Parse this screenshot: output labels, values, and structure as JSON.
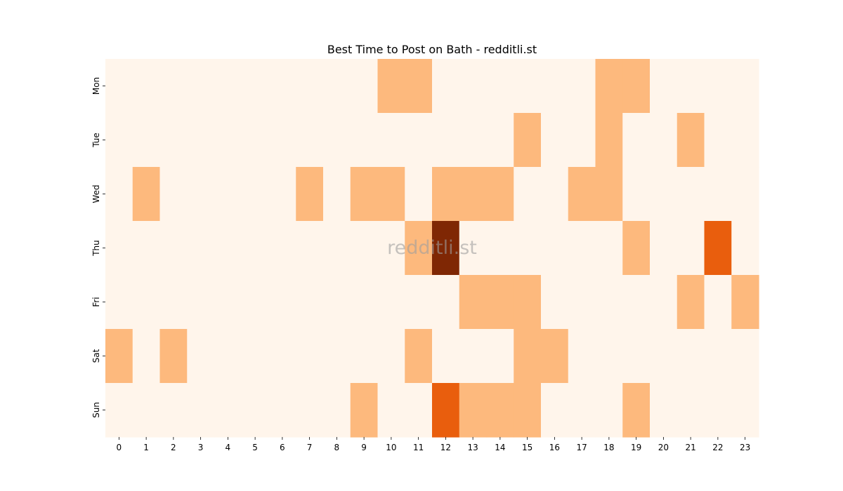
{
  "chart_data": {
    "type": "heatmap",
    "title": "Best Time to Post on Bath - redditli.st",
    "watermark": "redditli.st",
    "x_categories": [
      "0",
      "1",
      "2",
      "3",
      "4",
      "5",
      "6",
      "7",
      "8",
      "9",
      "10",
      "11",
      "12",
      "13",
      "14",
      "15",
      "16",
      "17",
      "18",
      "19",
      "20",
      "21",
      "22",
      "23"
    ],
    "y_categories": [
      "Mon",
      "Tue",
      "Wed",
      "Thu",
      "Fri",
      "Sat",
      "Sun"
    ],
    "values": [
      [
        0,
        0,
        0,
        0,
        0,
        0,
        0,
        0,
        0,
        0,
        1,
        1,
        0,
        0,
        0,
        0,
        0,
        0,
        1,
        1,
        0,
        0,
        0,
        0
      ],
      [
        0,
        0,
        0,
        0,
        0,
        0,
        0,
        0,
        0,
        0,
        0,
        0,
        0,
        0,
        0,
        1,
        0,
        0,
        1,
        0,
        0,
        1,
        0,
        0
      ],
      [
        0,
        1,
        0,
        0,
        0,
        0,
        0,
        1,
        0,
        1,
        1,
        0,
        1,
        1,
        1,
        0,
        0,
        1,
        1,
        0,
        0,
        0,
        0,
        0
      ],
      [
        0,
        0,
        0,
        0,
        0,
        0,
        0,
        0,
        0,
        0,
        0,
        1,
        3,
        0,
        0,
        0,
        0,
        0,
        0,
        1,
        0,
        0,
        2,
        0
      ],
      [
        0,
        0,
        0,
        0,
        0,
        0,
        0,
        0,
        0,
        0,
        0,
        0,
        0,
        1,
        1,
        1,
        0,
        0,
        0,
        0,
        0,
        1,
        0,
        1
      ],
      [
        1,
        0,
        1,
        0,
        0,
        0,
        0,
        0,
        0,
        0,
        0,
        1,
        0,
        0,
        0,
        1,
        1,
        0,
        0,
        0,
        0,
        0,
        0,
        0
      ],
      [
        0,
        0,
        0,
        0,
        0,
        0,
        0,
        0,
        0,
        1,
        0,
        0,
        2,
        1,
        1,
        1,
        0,
        0,
        0,
        1,
        0,
        0,
        0,
        0
      ]
    ],
    "color_scale": [
      "#fff5eb",
      "#fdb97d",
      "#e95e0d",
      "#7f2704"
    ],
    "grid": false,
    "legend": "none"
  }
}
